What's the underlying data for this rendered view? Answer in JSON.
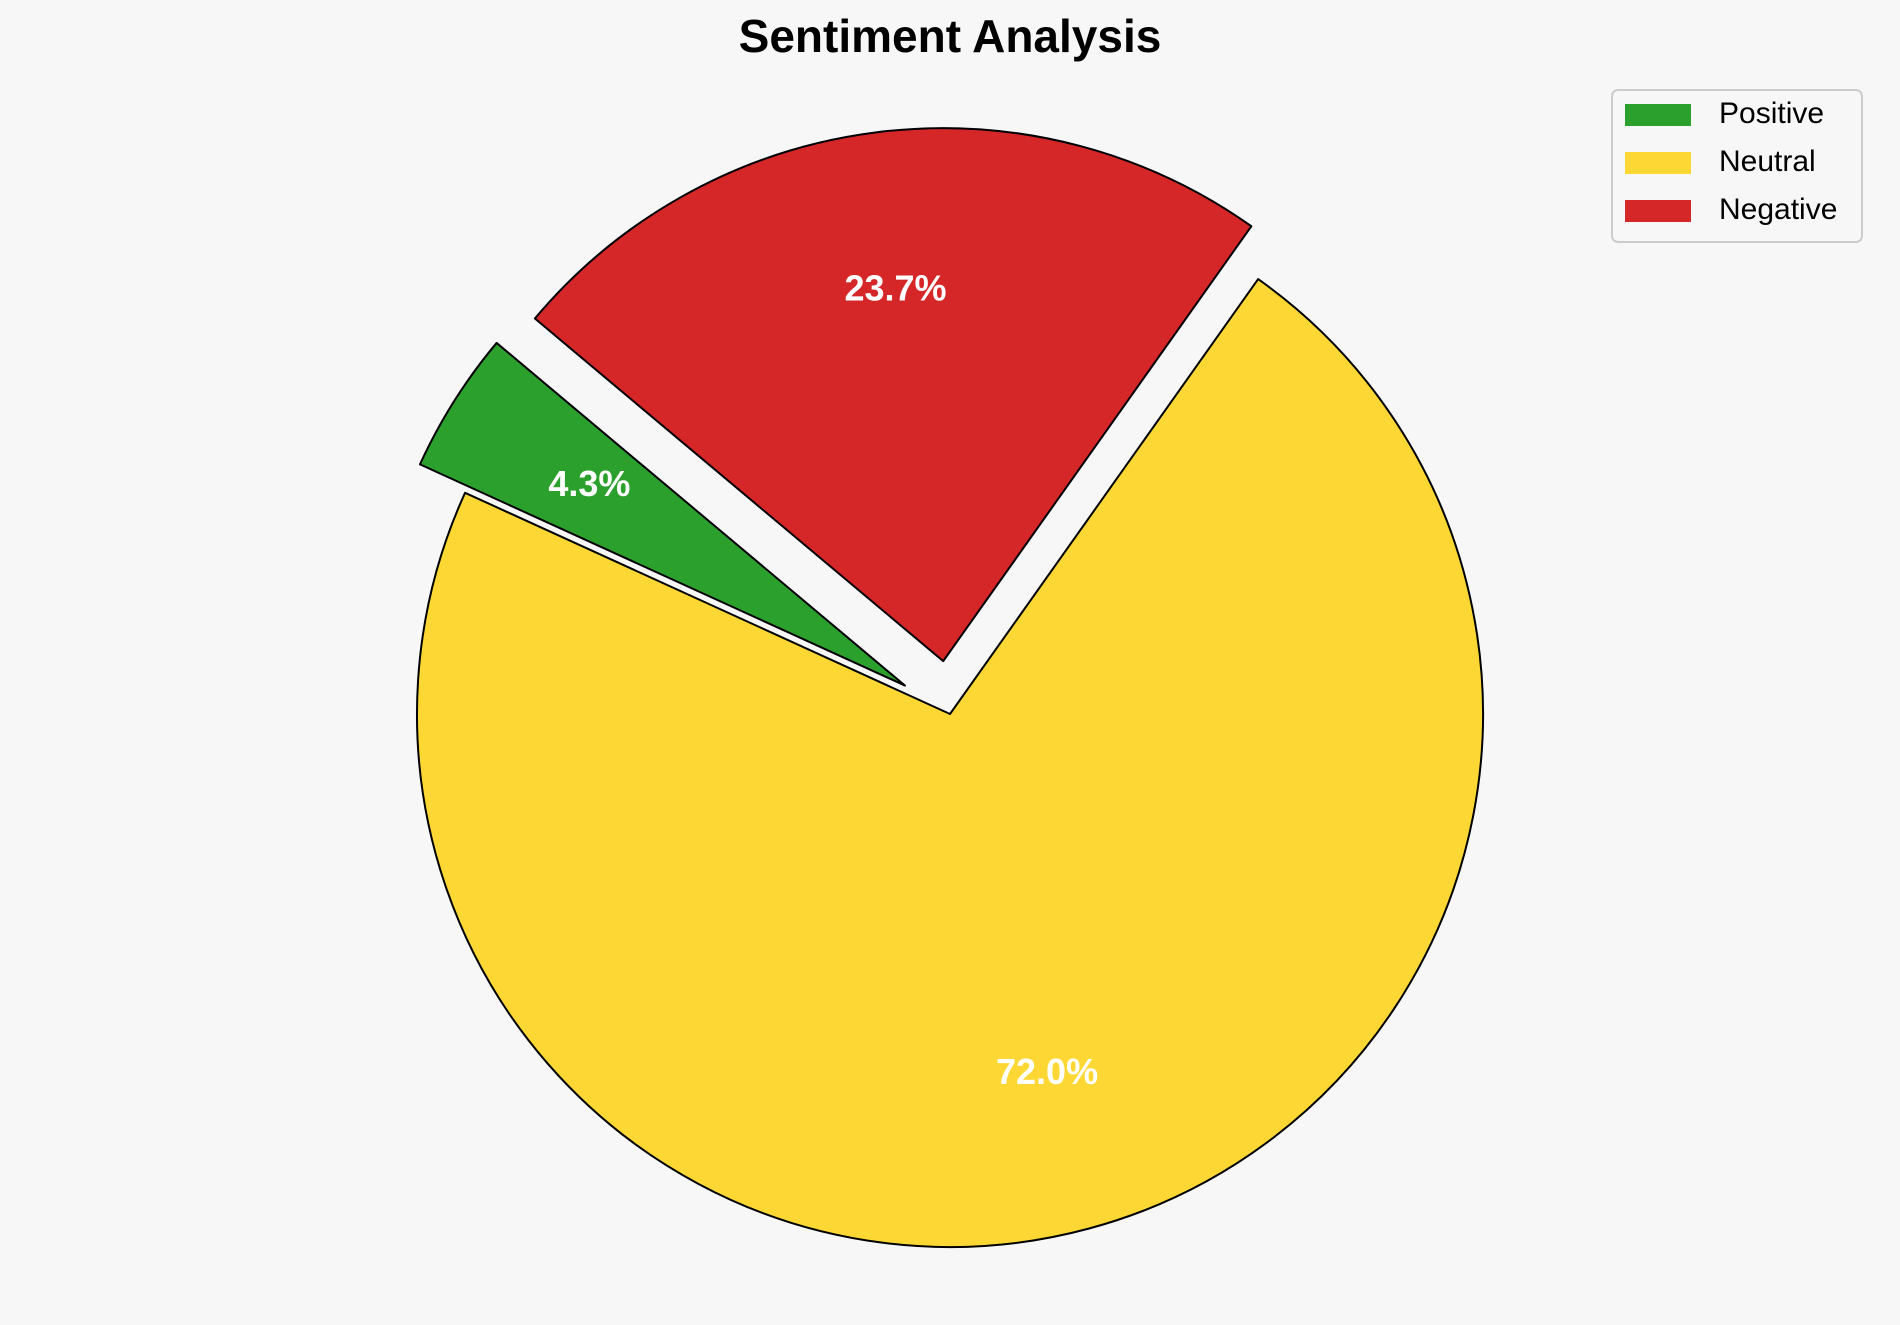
{
  "chart_data": {
    "type": "pie",
    "title": "Sentiment Analysis",
    "categories": [
      "Positive",
      "Neutral",
      "Negative"
    ],
    "values": [
      4.3,
      72.0,
      23.7
    ],
    "value_labels": [
      "4.3%",
      "72.0%",
      "23.7%"
    ],
    "colors": [
      "#2ca02c",
      "#fdd835",
      "#d62728"
    ],
    "legend": "upper right"
  }
}
